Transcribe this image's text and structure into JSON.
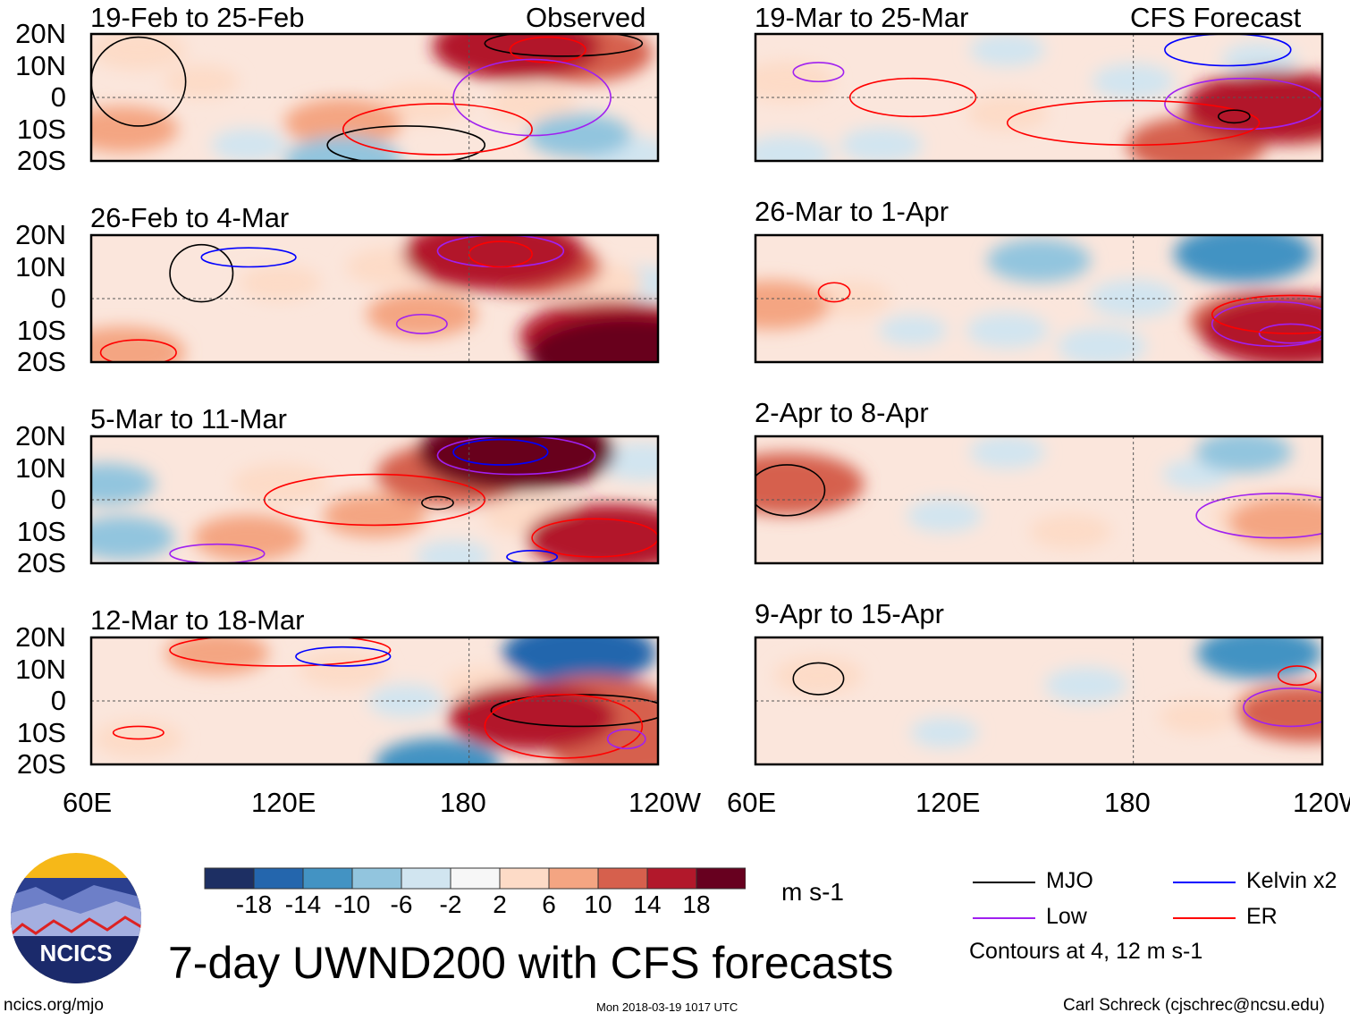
{
  "title": "7-day UWND200 with CFS forecasts",
  "left_header": "Observed",
  "right_header": "CFS Forecast",
  "lat_ticks": [
    "20N",
    "10N",
    "0",
    "10S",
    "20S"
  ],
  "lon_ticks": [
    "60E",
    "120E",
    "180",
    "120W"
  ],
  "colorbar": {
    "colors": [
      "#1d2f63",
      "#2466ad",
      "#4393c3",
      "#92c5de",
      "#d1e5f0",
      "#f7f7f7",
      "#fddbc7",
      "#f4a582",
      "#d6604d",
      "#b2182b",
      "#67001f"
    ],
    "labels": [
      "-18",
      "-14",
      "-10",
      "-6",
      "-2",
      "2",
      "6",
      "10",
      "14",
      "18"
    ],
    "units": "m s-1"
  },
  "legend": {
    "items": [
      {
        "label": "MJO",
        "color": "#000000"
      },
      {
        "label": "Kelvin x2",
        "color": "#0000ff"
      },
      {
        "label": "Low",
        "color": "#a020f0"
      },
      {
        "label": "ER",
        "color": "#ff0000"
      }
    ],
    "note": "Contours at 4, 12 m s-1"
  },
  "footer": {
    "left": "ncics.org/mjo",
    "center": "Mon 2018-03-19 1017 UTC",
    "right": "Carl Schreck (cjschrec@ncsu.edu)"
  },
  "logo_text": "NCICS",
  "chart_data": {
    "type": "heatmap",
    "variable": "200-hPa zonal wind anomaly",
    "units": "m s-1",
    "lon_range": [
      60,
      240
    ],
    "lat_range": [
      -20,
      20
    ],
    "panels": [
      {
        "label": "19-Feb to 25-Feb",
        "col": 0,
        "row": 0,
        "blobs": [
          [
            215,
            14,
            13
          ],
          [
            195,
            16,
            16
          ],
          [
            70,
            -10,
            8
          ],
          [
            75,
            15,
            6
          ],
          [
            140,
            -8,
            9
          ],
          [
            165,
            -2,
            6
          ],
          [
            200,
            -2,
            5
          ],
          [
            140,
            -20,
            -9
          ],
          [
            215,
            -12,
            -7
          ],
          [
            230,
            -18,
            -5
          ],
          [
            110,
            -15,
            -3
          ],
          [
            95,
            5,
            3
          ]
        ],
        "contours": [
          [
            75,
            5,
            15,
            14,
            "#000"
          ],
          [
            160,
            -15,
            25,
            6,
            "#000"
          ],
          [
            210,
            17,
            25,
            4,
            "#000"
          ],
          [
            205,
            15,
            12,
            4,
            "#f00"
          ],
          [
            170,
            -10,
            30,
            8,
            "#f00"
          ],
          [
            200,
            0,
            25,
            12,
            "#a020f0"
          ]
        ]
      },
      {
        "label": "26-Feb to 4-Mar",
        "col": 0,
        "row": 0,
        "blobs": [
          [
            188,
            14,
            18
          ],
          [
            200,
            10,
            12
          ],
          [
            225,
            -12,
            18
          ],
          [
            230,
            -18,
            20
          ],
          [
            70,
            -17,
            10
          ],
          [
            165,
            -5,
            8
          ],
          [
            120,
            5,
            4
          ],
          [
            220,
            5,
            6
          ],
          [
            235,
            5,
            -3
          ],
          [
            155,
            10,
            5
          ]
        ],
        "contours": [
          [
            95,
            8,
            10,
            9,
            "#000"
          ],
          [
            110,
            13,
            15,
            3,
            "#00f"
          ],
          [
            190,
            15,
            20,
            5,
            "#a020f0"
          ],
          [
            165,
            -8,
            8,
            3,
            "#a020f0"
          ],
          [
            75,
            -17,
            12,
            4,
            "#f00"
          ],
          [
            190,
            14,
            10,
            4,
            "#f00"
          ]
        ]
      },
      {
        "label": "5-Mar to 11-Mar",
        "col": 0,
        "row": 0,
        "blobs": [
          [
            195,
            15,
            20
          ],
          [
            175,
            8,
            14
          ],
          [
            225,
            -12,
            16
          ],
          [
            65,
            5,
            -6
          ],
          [
            70,
            -12,
            -7
          ],
          [
            110,
            -12,
            8
          ],
          [
            150,
            -5,
            7
          ],
          [
            200,
            -5,
            6
          ],
          [
            235,
            12,
            -5
          ],
          [
            120,
            5,
            6
          ],
          [
            175,
            -18,
            -3
          ]
        ],
        "contours": [
          [
            190,
            15,
            15,
            4,
            "#00f"
          ],
          [
            195,
            14,
            25,
            6,
            "#a020f0"
          ],
          [
            150,
            0,
            35,
            8,
            "#f00"
          ],
          [
            220,
            -12,
            20,
            6,
            "#f00"
          ],
          [
            170,
            -1,
            5,
            2,
            "#000"
          ],
          [
            200,
            -18,
            8,
            2,
            "#00f"
          ],
          [
            100,
            -17,
            15,
            3,
            "#a020f0"
          ]
        ]
      },
      {
        "label": "12-Mar to 18-Mar",
        "col": 0,
        "row": 0,
        "blobs": [
          [
            215,
            15,
            -14
          ],
          [
            220,
            -2,
            14
          ],
          [
            200,
            -5,
            16
          ],
          [
            230,
            -15,
            14
          ],
          [
            100,
            15,
            7
          ],
          [
            140,
            10,
            5
          ],
          [
            170,
            -20,
            -10
          ],
          [
            75,
            -12,
            5
          ],
          [
            185,
            5,
            4
          ],
          [
            160,
            0,
            -3
          ]
        ],
        "contours": [
          [
            120,
            16,
            35,
            5,
            "#f00"
          ],
          [
            140,
            14,
            15,
            3,
            "#00f"
          ],
          [
            215,
            -3,
            28,
            5,
            "#000"
          ],
          [
            210,
            -8,
            25,
            10,
            "#f00"
          ],
          [
            75,
            -10,
            8,
            2,
            "#f00"
          ],
          [
            230,
            -12,
            6,
            3,
            "#a020f0"
          ]
        ]
      },
      {
        "label": "19-Mar to 25-Mar",
        "col": 1,
        "row": 0,
        "blobs": [
          [
            230,
            -5,
            14
          ],
          [
            225,
            -3,
            18
          ],
          [
            200,
            -15,
            12
          ],
          [
            70,
            5,
            6
          ],
          [
            140,
            -5,
            4
          ],
          [
            180,
            5,
            -4
          ],
          [
            140,
            15,
            -3
          ],
          [
            100,
            -15,
            -4
          ],
          [
            220,
            12,
            -3
          ],
          [
            70,
            -18,
            -5
          ]
        ],
        "contours": [
          [
            215,
            -2,
            25,
            8,
            "#a020f0"
          ],
          [
            210,
            15,
            20,
            5,
            "#00f"
          ],
          [
            110,
            0,
            20,
            6,
            "#f00"
          ],
          [
            180,
            -8,
            40,
            7,
            "#f00"
          ],
          [
            212,
            -6,
            5,
            2,
            "#000"
          ],
          [
            80,
            8,
            8,
            3,
            "#a020f0"
          ]
        ]
      },
      {
        "label": "26-Mar to 1-Apr",
        "col": 1,
        "row": 0,
        "blobs": [
          [
            215,
            14,
            -12
          ],
          [
            150,
            12,
            -7
          ],
          [
            230,
            -10,
            18
          ],
          [
            220,
            -7,
            12
          ],
          [
            65,
            -2,
            9
          ],
          [
            90,
            0,
            4
          ],
          [
            180,
            0,
            -5
          ],
          [
            140,
            -10,
            -4
          ],
          [
            170,
            -15,
            -5
          ],
          [
            110,
            -10,
            -2
          ]
        ],
        "contours": [
          [
            225,
            -8,
            20,
            7,
            "#a020f0"
          ],
          [
            230,
            -11,
            10,
            3,
            "#a020f0"
          ],
          [
            85,
            2,
            5,
            3,
            "#f00"
          ],
          [
            230,
            -5,
            25,
            6,
            "#f00"
          ]
        ]
      },
      {
        "label": "2-Apr to 8-Apr",
        "col": 1,
        "row": 0,
        "blobs": [
          [
            70,
            5,
            14
          ],
          [
            230,
            -7,
            10
          ],
          [
            220,
            -5,
            6
          ],
          [
            215,
            15,
            -6
          ],
          [
            140,
            15,
            -3
          ],
          [
            200,
            8,
            -2
          ],
          [
            160,
            -10,
            4
          ],
          [
            120,
            -5,
            -3
          ]
        ],
        "contours": [
          [
            70,
            3,
            12,
            8,
            "#000"
          ],
          [
            225,
            -5,
            25,
            7,
            "#a020f0"
          ]
        ]
      },
      {
        "label": "9-Apr to 15-Apr",
        "col": 1,
        "row": 0,
        "blobs": [
          [
            235,
            -4,
            12
          ],
          [
            230,
            -2,
            8
          ],
          [
            220,
            15,
            -10
          ],
          [
            80,
            8,
            5
          ],
          [
            165,
            5,
            -4
          ],
          [
            200,
            -5,
            3
          ],
          [
            120,
            -10,
            -2
          ]
        ],
        "contours": [
          [
            80,
            7,
            8,
            5,
            "#000"
          ],
          [
            230,
            -2,
            15,
            6,
            "#a020f0"
          ],
          [
            232,
            8,
            6,
            3,
            "#f00"
          ]
        ]
      }
    ]
  }
}
